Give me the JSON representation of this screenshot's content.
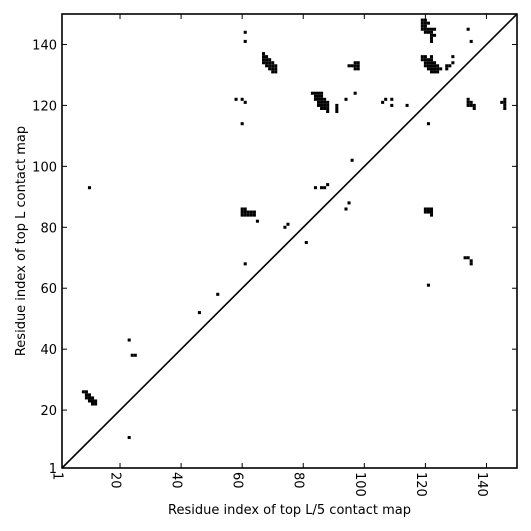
{
  "chart_data": {
    "type": "scatter",
    "xlabel": "Residue index of top L/5 contact map",
    "ylabel": "Residue index of top L contact map",
    "xlim": [
      1,
      150
    ],
    "ylim": [
      1,
      150
    ],
    "x_ticks": [
      1,
      20,
      40,
      60,
      80,
      100,
      120,
      140
    ],
    "y_ticks": [
      1,
      20,
      40,
      60,
      80,
      100,
      120,
      140
    ],
    "x_tick_labels": [
      "1",
      "20",
      "40",
      "60",
      "80",
      "100",
      "120",
      "140"
    ],
    "y_tick_labels": [
      "1",
      "20",
      "40",
      "60",
      "80",
      "100",
      "120",
      "140"
    ],
    "diagonal": [
      [
        1,
        1
      ],
      [
        150,
        150
      ]
    ],
    "point_color": "#000000",
    "points": [
      [
        8,
        26
      ],
      [
        9,
        26
      ],
      [
        9,
        25
      ],
      [
        10,
        25
      ],
      [
        10,
        24
      ],
      [
        11,
        24
      ],
      [
        11,
        23
      ],
      [
        12,
        23
      ],
      [
        12,
        22
      ],
      [
        11,
        22
      ],
      [
        10,
        23
      ],
      [
        9,
        24
      ],
      [
        23,
        11
      ],
      [
        23,
        43
      ],
      [
        24,
        38
      ],
      [
        25,
        38
      ],
      [
        10,
        93
      ],
      [
        46,
        52
      ],
      [
        52,
        58
      ],
      [
        61,
        68
      ],
      [
        60,
        86
      ],
      [
        61,
        86
      ],
      [
        60,
        85
      ],
      [
        61,
        85
      ],
      [
        62,
        85
      ],
      [
        63,
        85
      ],
      [
        64,
        85
      ],
      [
        60,
        84
      ],
      [
        61,
        84
      ],
      [
        62,
        84
      ],
      [
        63,
        84
      ],
      [
        64,
        84
      ],
      [
        65,
        82
      ],
      [
        58,
        122
      ],
      [
        60,
        122
      ],
      [
        61,
        121
      ],
      [
        60,
        114
      ],
      [
        61,
        141
      ],
      [
        61,
        144
      ],
      [
        67,
        137
      ],
      [
        67,
        136
      ],
      [
        68,
        136
      ],
      [
        67,
        135
      ],
      [
        68,
        135
      ],
      [
        69,
        135
      ],
      [
        67,
        134
      ],
      [
        68,
        134
      ],
      [
        69,
        134
      ],
      [
        70,
        134
      ],
      [
        68,
        133
      ],
      [
        69,
        133
      ],
      [
        70,
        133
      ],
      [
        71,
        133
      ],
      [
        69,
        132
      ],
      [
        70,
        132
      ],
      [
        71,
        132
      ],
      [
        70,
        131
      ],
      [
        71,
        131
      ],
      [
        74,
        80
      ],
      [
        75,
        81
      ],
      [
        81,
        75
      ],
      [
        83,
        124
      ],
      [
        84,
        124
      ],
      [
        85,
        124
      ],
      [
        86,
        124
      ],
      [
        84,
        123
      ],
      [
        85,
        123
      ],
      [
        86,
        123
      ],
      [
        84,
        122
      ],
      [
        85,
        122
      ],
      [
        86,
        122
      ],
      [
        87,
        122
      ],
      [
        85,
        121
      ],
      [
        86,
        121
      ],
      [
        87,
        121
      ],
      [
        88,
        121
      ],
      [
        85,
        120
      ],
      [
        86,
        120
      ],
      [
        87,
        120
      ],
      [
        88,
        120
      ],
      [
        86,
        119
      ],
      [
        87,
        119
      ],
      [
        88,
        119
      ],
      [
        88,
        118
      ],
      [
        91,
        120
      ],
      [
        91,
        119
      ],
      [
        91,
        118
      ],
      [
        94,
        122
      ],
      [
        97,
        124
      ],
      [
        95,
        133
      ],
      [
        96,
        133
      ],
      [
        97,
        134
      ],
      [
        98,
        134
      ],
      [
        97,
        133
      ],
      [
        98,
        133
      ],
      [
        97,
        132
      ],
      [
        98,
        132
      ],
      [
        84,
        93
      ],
      [
        86,
        93
      ],
      [
        87,
        93
      ],
      [
        88,
        94
      ],
      [
        94,
        86
      ],
      [
        95,
        88
      ],
      [
        96,
        102
      ],
      [
        106,
        121
      ],
      [
        107,
        122
      ],
      [
        109,
        122
      ],
      [
        109,
        120
      ],
      [
        114,
        120
      ],
      [
        119,
        148
      ],
      [
        120,
        148
      ],
      [
        119,
        147
      ],
      [
        120,
        147
      ],
      [
        121,
        147
      ],
      [
        119,
        146
      ],
      [
        120,
        146
      ],
      [
        119,
        145
      ],
      [
        120,
        145
      ],
      [
        121,
        145
      ],
      [
        122,
        145
      ],
      [
        123,
        145
      ],
      [
        120,
        144
      ],
      [
        121,
        144
      ],
      [
        122,
        144
      ],
      [
        122,
        143
      ],
      [
        123,
        143
      ],
      [
        122,
        142
      ],
      [
        122,
        141
      ],
      [
        119,
        136
      ],
      [
        120,
        136
      ],
      [
        122,
        136
      ],
      [
        119,
        135
      ],
      [
        120,
        135
      ],
      [
        121,
        135
      ],
      [
        122,
        135
      ],
      [
        120,
        134
      ],
      [
        121,
        134
      ],
      [
        122,
        134
      ],
      [
        123,
        134
      ],
      [
        120,
        133
      ],
      [
        121,
        133
      ],
      [
        122,
        133
      ],
      [
        123,
        133
      ],
      [
        124,
        133
      ],
      [
        121,
        132
      ],
      [
        122,
        132
      ],
      [
        123,
        132
      ],
      [
        124,
        132
      ],
      [
        125,
        132
      ],
      [
        122,
        131
      ],
      [
        123,
        131
      ],
      [
        124,
        131
      ],
      [
        121,
        114
      ],
      [
        127,
        133
      ],
      [
        128,
        133
      ],
      [
        127,
        132
      ],
      [
        129,
        134
      ],
      [
        129,
        136
      ],
      [
        120,
        86
      ],
      [
        121,
        86
      ],
      [
        122,
        86
      ],
      [
        120,
        85
      ],
      [
        121,
        85
      ],
      [
        122,
        85
      ],
      [
        122,
        84
      ],
      [
        121,
        61
      ],
      [
        133,
        70
      ],
      [
        134,
        70
      ],
      [
        135,
        69
      ],
      [
        135,
        68
      ],
      [
        134,
        145
      ],
      [
        135,
        141
      ],
      [
        134,
        122
      ],
      [
        134,
        121
      ],
      [
        135,
        121
      ],
      [
        134,
        120
      ],
      [
        135,
        120
      ],
      [
        136,
        120
      ],
      [
        136,
        119
      ],
      [
        145,
        121
      ],
      [
        146,
        122
      ],
      [
        146,
        121
      ],
      [
        146,
        120
      ],
      [
        146,
        119
      ]
    ]
  }
}
